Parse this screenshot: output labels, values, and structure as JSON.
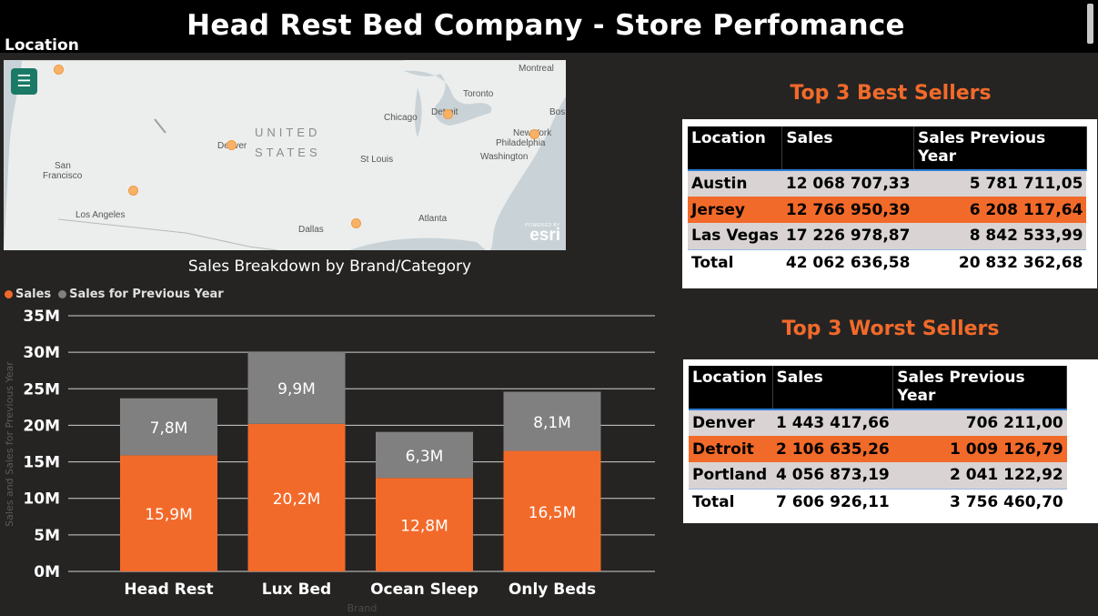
{
  "header": {
    "title": "Head Rest Bed Company - Store Perfomance"
  },
  "map": {
    "label": "Location",
    "country_label_1": "UNITED",
    "country_label_2": "STATES",
    "attribution_small": "POWERED BY",
    "attribution_brand": "esri",
    "cities": [
      "Montreal",
      "Toronto",
      "Chicago",
      "Detroit",
      "Bos",
      "New York",
      "Philadelphia",
      "Washington",
      "Denver",
      "St Louis",
      "San",
      "Francisco",
      "Los Angeles",
      "Atlanta",
      "Dallas"
    ],
    "marker_color": "#f7b26a"
  },
  "chart_data": {
    "type": "bar",
    "title": "Sales Breakdown by Brand/Category",
    "stacked": true,
    "categories": [
      "Head Rest",
      "Lux Bed",
      "Ocean Sleep",
      "Only Beds"
    ],
    "series": [
      {
        "name": "Sales",
        "color": "#f26a2a",
        "values": [
          15.9,
          20.2,
          12.8,
          16.5
        ],
        "labels": [
          "15,9M",
          "20,2M",
          "12,8M",
          "16,5M"
        ]
      },
      {
        "name": "Sales for Previous Year",
        "color": "#808080",
        "values": [
          7.8,
          9.9,
          6.3,
          8.1
        ],
        "labels": [
          "7,8M",
          "9,9M",
          "6,3M",
          "8,1M"
        ]
      }
    ],
    "yticks": [
      "0M",
      "5M",
      "10M",
      "15M",
      "20M",
      "25M",
      "30M",
      "35M"
    ],
    "ylim": [
      0,
      35
    ],
    "xlabel": "Brand",
    "ylabel": "Sales and Sales for Previous Year",
    "legend_position": "top-left",
    "grid": true
  },
  "best_sellers": {
    "title": "Top 3 Best Sellers",
    "columns": [
      "Location",
      "Sales",
      "Sales Previous Year"
    ],
    "rows": [
      [
        "Austin",
        "12 068 707,33",
        "5 781 711,05"
      ],
      [
        "Jersey",
        "12 766 950,39",
        "6 208 117,64"
      ],
      [
        "Las Vegas",
        "17 226 978,87",
        "8 842 533,99"
      ]
    ],
    "total": [
      "Total",
      "42 062 636,58",
      "20 832 362,68"
    ]
  },
  "worst_sellers": {
    "title": "Top 3 Worst Sellers",
    "columns": [
      "Location",
      "Sales",
      "Sales Previous Year"
    ],
    "rows": [
      [
        "Denver",
        "1 443 417,66",
        "706 211,00"
      ],
      [
        "Detroit",
        "2 106 635,26",
        "1 009 126,79"
      ],
      [
        "Portland",
        "4 056 873,19",
        "2 041 122,92"
      ]
    ],
    "total": [
      "Total",
      "7 606 926,11",
      "3 756 460,70"
    ]
  },
  "colors": {
    "accent": "#f26a2a",
    "background": "#252423",
    "previous_year": "#808080",
    "row_alt": "#d9d4d3"
  }
}
